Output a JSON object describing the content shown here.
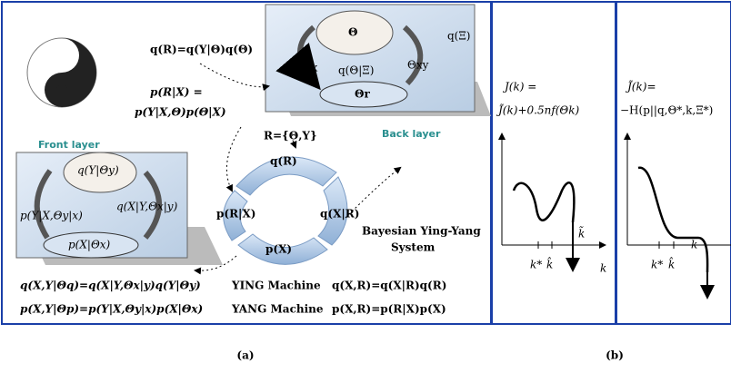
{
  "panel_a": {
    "joint_prior": "q(R)=q(Y|Θ)q(Θ)",
    "posterior_line1": "p(R|X) =",
    "posterior_line2": "p(Y|X,Θ)p(Θ|X)",
    "front_layer": {
      "title": "Front layer",
      "brain": "q(Y|Θy)",
      "right": "q(X|Y,Θx|y)",
      "left": "p(Y|X,Θy|x)",
      "bottom": "p(X|Θx)"
    },
    "back_layer": {
      "title": "Back layer",
      "brain": "Θ",
      "left": "Θy|x",
      "right": "Θxy",
      "center": "q(Θ|Ξ)",
      "bottom": "Θr",
      "outside": "q(Ξ)"
    },
    "ring": {
      "definition": "R={Θ,Y}",
      "top": "q(R)",
      "left": "p(R|X)",
      "right": "q(X|R)",
      "bottom": "p(X)"
    },
    "system_line1": "Bayesian Ying-Yang",
    "system_line2": "System",
    "equations": [
      [
        "q(X,Y|Θq)=q(X|Y,Θx|y)q(Y|Θy)",
        "YING Machine",
        "q(X,R)=q(X|R)q(R)"
      ],
      [
        "p(X,Y|Θp)=p(Y|X,Θy|x)p(X|Θx)",
        "YANG Machine",
        "p(X,R)=p(R|X)p(X)"
      ]
    ],
    "caption": "(a)"
  },
  "panel_b": {
    "left_plot": {
      "line1": "J(k) =",
      "line2": "J̃(k)+0.5nf(Θk)",
      "k_star": "k*",
      "k_hat": "k̂",
      "k_tilde": "k̃",
      "axis": "k"
    },
    "right_plot": {
      "line1": "J̃(k)=",
      "line2": "−H(p||q,Θ*,k,Ξ*)",
      "k_tilde": "k̃",
      "k_star": "k*",
      "k_hat": "k̂"
    },
    "caption": "(b)"
  }
}
